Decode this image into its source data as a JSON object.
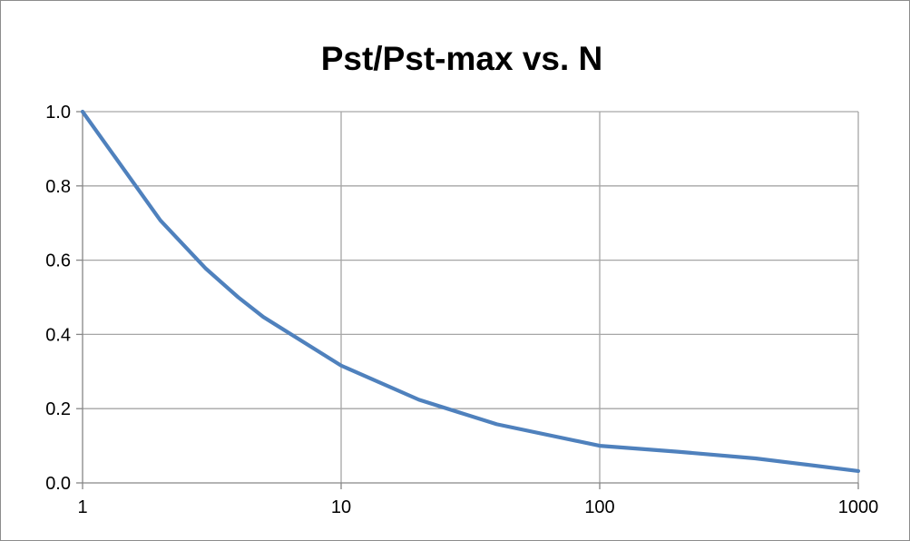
{
  "chart_data": {
    "type": "line",
    "title": "Pst/Pst-max vs. N",
    "xlabel": "",
    "ylabel": "",
    "x_scale": "log",
    "xlim": [
      1,
      1000
    ],
    "ylim": [
      0,
      1.0
    ],
    "x_ticks": [
      1,
      10,
      100,
      1000
    ],
    "x_tick_labels": [
      "1",
      "10",
      "100",
      "1000"
    ],
    "y_ticks": [
      0,
      0.2,
      0.4,
      0.6,
      0.8,
      1.0
    ],
    "y_tick_labels": [
      "0.0",
      "0.2",
      "0.4",
      "0.6",
      "0.8",
      "1.0"
    ],
    "grid": true,
    "legend": "none",
    "series": [
      {
        "color": "#4f81bd",
        "x": [
          1,
          2,
          3,
          4,
          5,
          10,
          20,
          40,
          100,
          200,
          400,
          1000
        ],
        "values": [
          1.0,
          0.707,
          0.577,
          0.5,
          0.447,
          0.316,
          0.224,
          0.158,
          0.1,
          0.084,
          0.066,
          0.032
        ]
      }
    ]
  }
}
